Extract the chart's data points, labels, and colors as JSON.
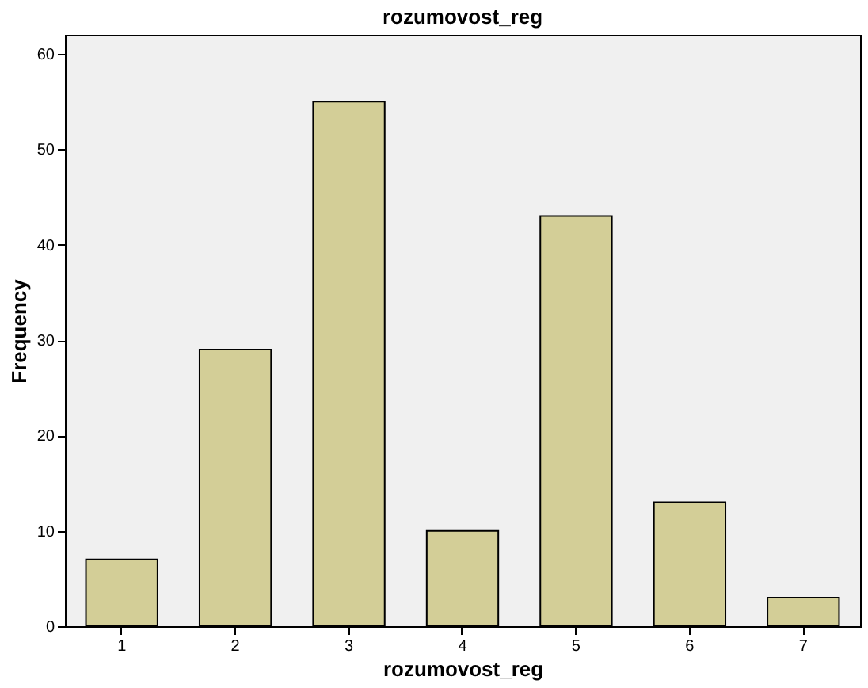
{
  "chart_data": {
    "type": "bar",
    "title": "rozumovost_reg",
    "xlabel": "rozumovost_reg",
    "ylabel": "Frequency",
    "categories": [
      "1",
      "2",
      "3",
      "4",
      "5",
      "6",
      "7"
    ],
    "values": [
      7,
      29,
      55,
      10,
      43,
      13,
      3
    ],
    "color": "#d3ce97",
    "ylim": [
      0,
      62
    ],
    "yticks": [
      0,
      10,
      20,
      30,
      40,
      50,
      60
    ]
  }
}
